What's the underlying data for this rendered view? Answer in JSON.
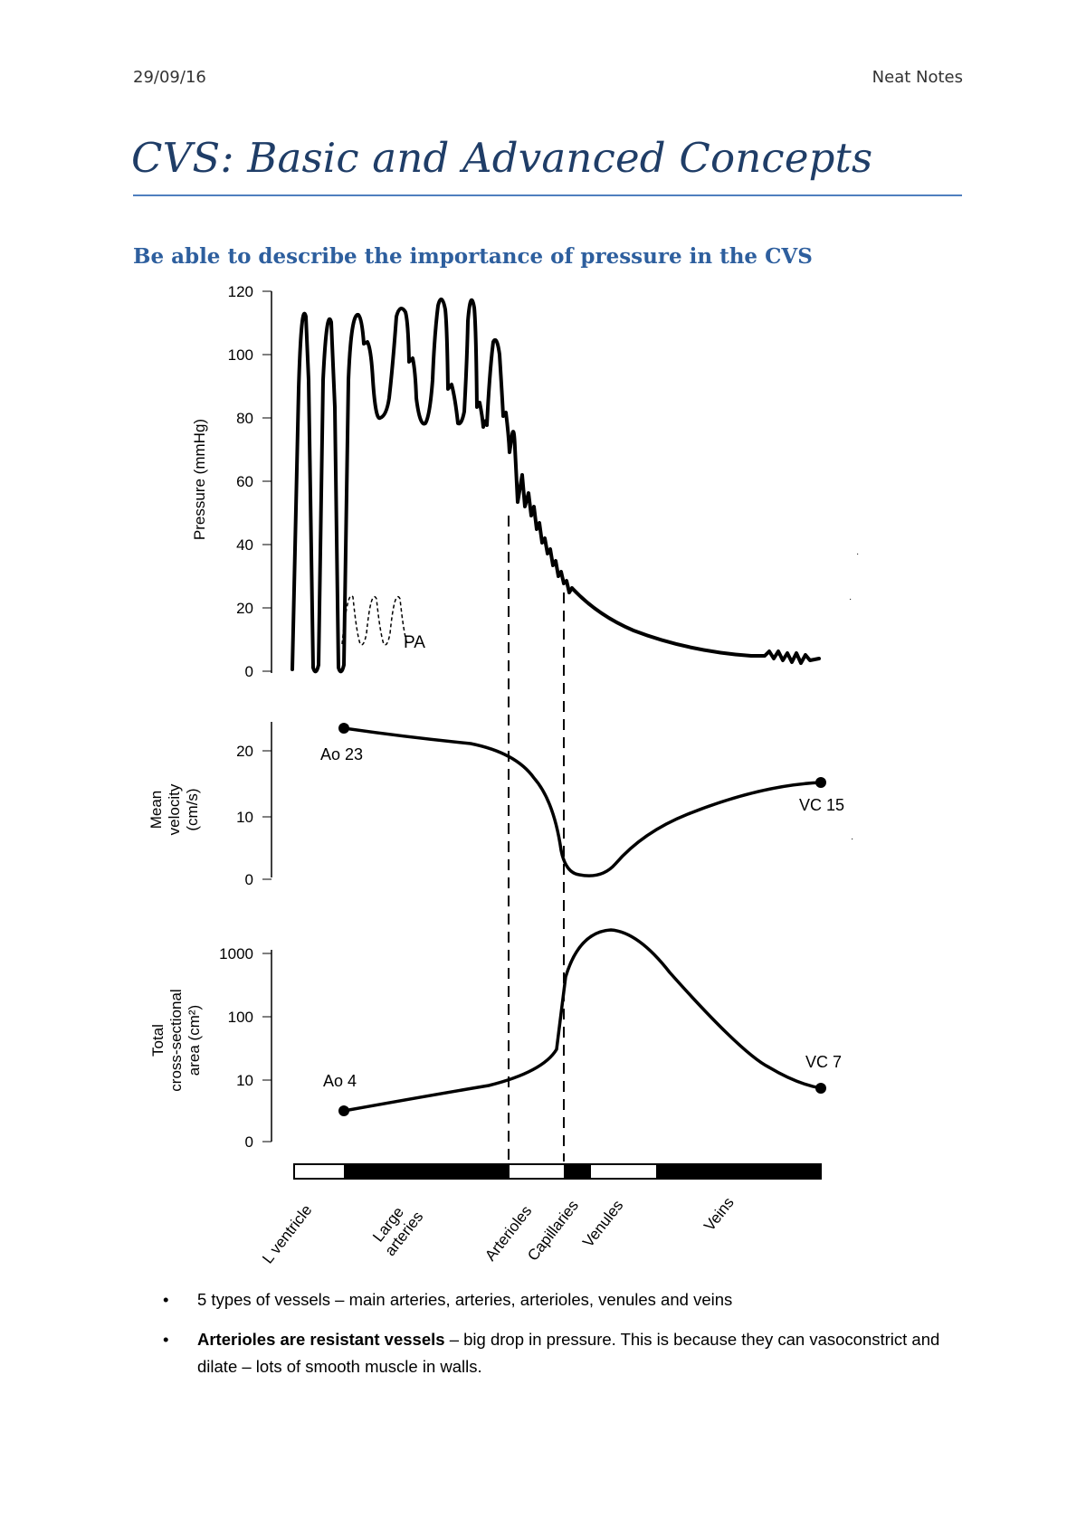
{
  "header": {
    "date": "29/09/16",
    "app": "Neat Notes"
  },
  "title": "CVS: Basic and Advanced Concepts",
  "section_heading": "Be able to describe the importance of pressure in the CVS",
  "chart_data": {
    "type": "line",
    "panels": [
      {
        "id": "pressure",
        "ylabel": "Pressure (mmHg)",
        "yticks": [
          "0",
          "20",
          "40",
          "60",
          "80",
          "100",
          "120"
        ],
        "ylim": [
          0,
          120
        ],
        "series_label": "PA",
        "description_values": {
          "peak_arterial": 120,
          "venous_end": 5
        }
      },
      {
        "id": "velocity",
        "ylabel_lines": [
          "Mean",
          "velocity",
          "(cm/s)"
        ],
        "yticks": [
          "0",
          "10",
          "20"
        ],
        "ylim": [
          0,
          25
        ],
        "start_label": "Ao 23",
        "end_label": "VC 15",
        "start_value": 23,
        "end_value": 15
      },
      {
        "id": "area",
        "ylabel_lines": [
          "Total",
          "cross-sectional",
          "area (cm²)"
        ],
        "yticks": [
          "0",
          "10",
          "100",
          "1000"
        ],
        "scale": "log",
        "start_label": "Ao 4",
        "end_label": "VC 7",
        "start_value": 4,
        "end_value": 7
      }
    ],
    "segments": [
      "L ventricle",
      "Large arteries",
      "Arterioles",
      "Capillaries",
      "Venules",
      "Veins"
    ]
  },
  "bullets": [
    {
      "bold": "",
      "text": "5 types of vessels – main arteries, arteries, arterioles, venules and veins"
    },
    {
      "bold": "Arterioles are resistant vessels",
      "text": " – big drop in pressure. This is because they can vasoconstrict and dilate – lots of smooth muscle in walls."
    }
  ],
  "colors": {
    "title": "#1f3d67",
    "heading": "#2e5f9e",
    "rule": "#4f7fbf"
  }
}
